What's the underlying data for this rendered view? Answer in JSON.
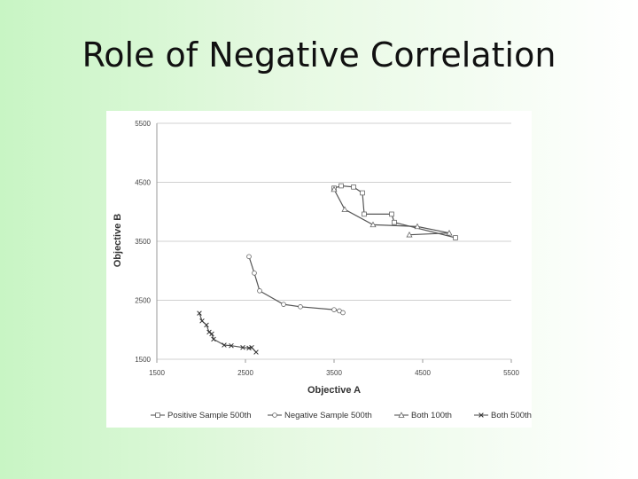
{
  "slide": {
    "title": "Role of Negative Correlation"
  },
  "chart_data": {
    "type": "line",
    "xlabel": "Objective A",
    "ylabel": "Objective B",
    "xlim": [
      1500,
      5500
    ],
    "ylim": [
      1500,
      5500
    ],
    "xticks": [
      1500,
      2500,
      3500,
      4500,
      5500
    ],
    "yticks": [
      1500,
      2500,
      3500,
      4500,
      5500
    ],
    "grid": "horizontal",
    "legend_position": "bottom",
    "series": [
      {
        "name": "Positive Sample 500th",
        "marker": "square",
        "points": [
          [
            3500,
            4400
          ],
          [
            3580,
            4440
          ],
          [
            3720,
            4420
          ],
          [
            3820,
            4320
          ],
          [
            3840,
            3960
          ],
          [
            4150,
            3960
          ],
          [
            4180,
            3820
          ],
          [
            4870,
            3560
          ]
        ]
      },
      {
        "name": "Negative Sample 500th",
        "marker": "circle",
        "points": [
          [
            2540,
            3240
          ],
          [
            2600,
            2960
          ],
          [
            2660,
            2660
          ],
          [
            2930,
            2430
          ],
          [
            3120,
            2390
          ],
          [
            3500,
            2340
          ],
          [
            3560,
            2320
          ],
          [
            3600,
            2290
          ]
        ]
      },
      {
        "name": "Both 100th",
        "marker": "triangle",
        "points": [
          [
            3500,
            4380
          ],
          [
            3620,
            4040
          ],
          [
            3940,
            3780
          ],
          [
            4440,
            3750
          ],
          [
            4800,
            3640
          ],
          [
            4350,
            3610
          ]
        ]
      },
      {
        "name": "Both 500th",
        "marker": "x",
        "points": [
          [
            1980,
            2280
          ],
          [
            2010,
            2150
          ],
          [
            2060,
            2080
          ],
          [
            2090,
            1960
          ],
          [
            2120,
            1930
          ],
          [
            2140,
            1840
          ],
          [
            2260,
            1740
          ],
          [
            2340,
            1730
          ],
          [
            2470,
            1700
          ],
          [
            2540,
            1690
          ],
          [
            2570,
            1700
          ],
          [
            2620,
            1620
          ]
        ]
      }
    ]
  }
}
